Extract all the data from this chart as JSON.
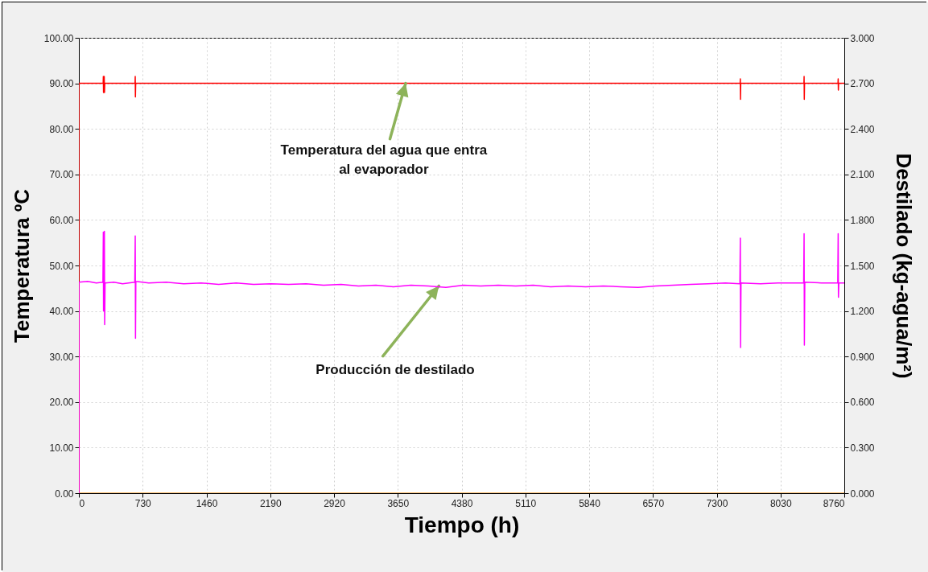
{
  "chart_data": {
    "type": "line",
    "xlabel": "Tiempo (h)",
    "ylabel": "Temperatura ºC",
    "y2label": "Destilado (kg-agua/m²)",
    "xlim": [
      0,
      8760
    ],
    "xticks": [
      0,
      730,
      1460,
      2190,
      2920,
      3650,
      4380,
      5110,
      5840,
      6570,
      7300,
      8030,
      8760
    ],
    "ylim": [
      0,
      100
    ],
    "yticks": [
      {
        "value": 0,
        "label": "0.00"
      },
      {
        "value": 10,
        "label": "10.00"
      },
      {
        "value": 20,
        "label": "20.00"
      },
      {
        "value": 30,
        "label": "30.00"
      },
      {
        "value": 40,
        "label": "40.00"
      },
      {
        "value": 50,
        "label": "50.00"
      },
      {
        "value": 60,
        "label": "60.00"
      },
      {
        "value": 70,
        "label": "70.00"
      },
      {
        "value": 80,
        "label": "80.00"
      },
      {
        "value": 90,
        "label": "90.00"
      },
      {
        "value": 100,
        "label": "100.00"
      }
    ],
    "y2lim": [
      0,
      3
    ],
    "y2ticks": [
      {
        "value": 0,
        "label": "0.000"
      },
      {
        "value": 0.3,
        "label": "0.300"
      },
      {
        "value": 0.6,
        "label": "0.600"
      },
      {
        "value": 0.9,
        "label": "0.900"
      },
      {
        "value": 1.2,
        "label": "1.200"
      },
      {
        "value": 1.5,
        "label": "1.500"
      },
      {
        "value": 1.8,
        "label": "1.800"
      },
      {
        "value": 2.1,
        "label": "2.100"
      },
      {
        "value": 2.4,
        "label": "2.400"
      },
      {
        "value": 2.7,
        "label": "2.700"
      },
      {
        "value": 3,
        "label": "3.000"
      }
    ],
    "grid": true,
    "marker": "none",
    "line_style": "solid",
    "series": [
      {
        "color": "#ff0000",
        "x": [
          0,
          0,
          278,
          280,
          282,
          285,
          290,
          293,
          296,
          643,
          645,
          647,
          650,
          7568,
          7570,
          7572,
          7575,
          8298,
          8300,
          8302,
          8305,
          8688,
          8690,
          8692,
          8695,
          8760
        ],
        "values": [
          0,
          90,
          90,
          91.5,
          88,
          90,
          91.5,
          88,
          90,
          90,
          91.5,
          87,
          90,
          90,
          91,
          86.5,
          90,
          90,
          91.5,
          86.5,
          90,
          90,
          91,
          88.5,
          90,
          90
        ]
      },
      {
        "color": "#f5a742",
        "x": [
          0,
          8760
        ],
        "values": [
          0,
          0
        ]
      },
      {
        "color": "#ff00ff",
        "axis": "y2",
        "x": [
          0,
          0,
          100,
          200,
          275,
          280,
          282,
          287,
          292,
          295,
          300,
          400,
          500,
          640,
          645,
          648,
          652,
          800,
          1000,
          1200,
          1400,
          1600,
          1800,
          2000,
          2200,
          2400,
          2600,
          2800,
          3000,
          3200,
          3400,
          3600,
          3800,
          4000,
          4200,
          4400,
          4600,
          4800,
          5000,
          5200,
          5400,
          5600,
          5800,
          6000,
          6200,
          6400,
          6600,
          6800,
          7000,
          7200,
          7400,
          7565,
          7570,
          7573,
          7578,
          7800,
          8000,
          8295,
          8300,
          8303,
          8308,
          8500,
          8685,
          8690,
          8693,
          8698,
          8760
        ],
        "values": [
          0,
          1.39,
          1.395,
          1.385,
          1.39,
          1.72,
          1.2,
          1.39,
          1.725,
          1.11,
          1.385,
          1.39,
          1.38,
          1.39,
          1.695,
          1.02,
          1.395,
          1.385,
          1.39,
          1.38,
          1.385,
          1.375,
          1.385,
          1.375,
          1.38,
          1.375,
          1.38,
          1.37,
          1.375,
          1.365,
          1.37,
          1.36,
          1.37,
          1.365,
          1.355,
          1.37,
          1.365,
          1.37,
          1.365,
          1.37,
          1.36,
          1.365,
          1.36,
          1.365,
          1.36,
          1.355,
          1.365,
          1.37,
          1.375,
          1.38,
          1.385,
          1.38,
          1.68,
          0.96,
          1.385,
          1.38,
          1.385,
          1.385,
          1.71,
          0.975,
          1.39,
          1.385,
          1.385,
          1.71,
          1.29,
          1.385,
          1.385
        ]
      }
    ],
    "annotations": [
      {
        "text": "Temperatura del agua que entra\nal evaporador",
        "x": 3740,
        "y": 90
      },
      {
        "text": "Producción de destilado",
        "x": 4120,
        "y": 45.5
      }
    ]
  }
}
